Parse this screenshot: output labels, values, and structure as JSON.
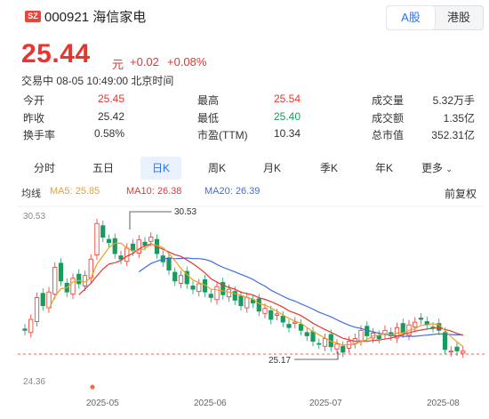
{
  "header": {
    "market_badge": "SZ",
    "code_name": "000921 海信家电",
    "toggle": [
      {
        "label": "A股",
        "active": true
      },
      {
        "label": "港股",
        "active": false
      }
    ]
  },
  "quote": {
    "price": "25.44",
    "unit": "元",
    "change": "+0.02",
    "change_pct": "+0.08%",
    "status": "交易中 08-05 10:49:00 北京时间"
  },
  "stats": [
    [
      {
        "label": "今开",
        "value": "25.45",
        "color": "red"
      },
      {
        "label": "最高",
        "value": "25.54",
        "color": "red"
      },
      {
        "label": "成交量",
        "value": "5.32万手",
        "color": "blk"
      }
    ],
    [
      {
        "label": "昨收",
        "value": "25.42",
        "color": "blk"
      },
      {
        "label": "最低",
        "value": "25.40",
        "color": "grn"
      },
      {
        "label": "成交额",
        "value": "1.35亿",
        "color": "blk"
      }
    ],
    [
      {
        "label": "换手率",
        "value": "0.58%",
        "color": "blk"
      },
      {
        "label": "市盈(TTM)",
        "value": "10.34",
        "color": "blk"
      },
      {
        "label": "总市值",
        "value": "352.31亿",
        "color": "blk"
      }
    ]
  ],
  "tabs": [
    {
      "label": "分时",
      "active": false
    },
    {
      "label": "五日",
      "active": false
    },
    {
      "label": "日K",
      "active": true
    },
    {
      "label": "周K",
      "active": false
    },
    {
      "label": "月K",
      "active": false
    },
    {
      "label": "季K",
      "active": false
    },
    {
      "label": "年K",
      "active": false
    },
    {
      "label": "更多",
      "active": false
    }
  ],
  "ma_legend": {
    "title": "均线",
    "ma5": "MA5: 25.85",
    "ma10": "MA10: 26.38",
    "ma20": "MA20: 26.39",
    "adjust": "前复权"
  },
  "colors": {
    "up": "#e8352e",
    "down": "#1a9a5e",
    "ma5": "#f0a020",
    "ma10": "#e8352e",
    "ma20": "#3e6de0"
  },
  "chart_data": {
    "type": "candlestick",
    "y_top_label": "30.53",
    "y_bottom_label": "24.36",
    "max_marker": "30.53",
    "min_marker": "25.17",
    "x_ticks": [
      "2025-05",
      "2025-06",
      "2025-07",
      "2025-08"
    ],
    "ylim": [
      24.36,
      30.53
    ]
  }
}
